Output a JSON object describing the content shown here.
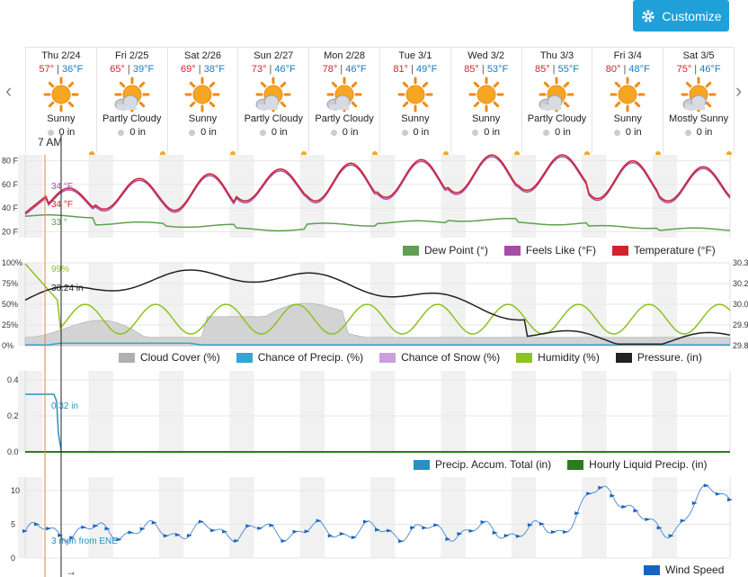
{
  "toolbar": {
    "customize_label": "Customize",
    "prev": "‹",
    "next": "›"
  },
  "days": [
    {
      "date": "Thu 2/24",
      "hi": "57°",
      "lo": "36°F",
      "icon": "sunny-icon",
      "cond": "Sunny",
      "precip": "0 in"
    },
    {
      "date": "Fri 2/25",
      "hi": "65°",
      "lo": "39°F",
      "icon": "partly-cloudy-icon",
      "cond": "Partly Cloudy",
      "precip": "0 in"
    },
    {
      "date": "Sat 2/26",
      "hi": "69°",
      "lo": "38°F",
      "icon": "sunny-icon",
      "cond": "Sunny",
      "precip": "0 in"
    },
    {
      "date": "Sun 2/27",
      "hi": "73°",
      "lo": "46°F",
      "icon": "partly-cloudy-icon",
      "cond": "Partly Cloudy",
      "precip": "0 in"
    },
    {
      "date": "Mon 2/28",
      "hi": "78°",
      "lo": "46°F",
      "icon": "partly-cloudy-icon",
      "cond": "Partly Cloudy",
      "precip": "0 in"
    },
    {
      "date": "Tue 3/1",
      "hi": "81°",
      "lo": "49°F",
      "icon": "sunny-icon",
      "cond": "Sunny",
      "precip": "0 in"
    },
    {
      "date": "Wed 3/2",
      "hi": "85°",
      "lo": "53°F",
      "icon": "sunny-icon",
      "cond": "Sunny",
      "precip": "0 in"
    },
    {
      "date": "Thu 3/3",
      "hi": "85°",
      "lo": "55°F",
      "icon": "partly-cloudy-icon",
      "cond": "Partly Cloudy",
      "precip": "0 in"
    },
    {
      "date": "Fri 3/4",
      "hi": "80°",
      "lo": "48°F",
      "icon": "sunny-icon",
      "cond": "Sunny",
      "precip": "0 in"
    },
    {
      "date": "Sat 3/5",
      "hi": "75°",
      "lo": "46°F",
      "icon": "mostly-sunny-icon",
      "cond": "Mostly Sunny",
      "precip": "0 in"
    }
  ],
  "cursor": {
    "time": "7 AM",
    "arrow": "→"
  },
  "colors": {
    "temperature": "#d2232a",
    "feels_like": "#a64ca6",
    "dew_point": "#5da050",
    "cloud": "#b0b0b0",
    "chance_precip": "#2fa8d8",
    "chance_snow": "#c9a0dc",
    "humidity": "#8dc21f",
    "pressure": "#222222",
    "accum": "#2a8fc1",
    "liquid": "#2d7a1f",
    "wind": "#1565c0"
  },
  "panels": {
    "temp": {
      "yticks": [
        "80 F",
        "60 F",
        "40 F",
        "20 F"
      ],
      "readouts": {
        "feels": "34 °F",
        "temp": "34 °F",
        "dew": "33 °"
      },
      "legend": [
        "Dew Point (°)",
        "Feels Like (°F)",
        "Temperature (°F)"
      ]
    },
    "humidity": {
      "yticks": [
        "100%",
        "75%",
        "50%",
        "25%",
        "0%"
      ],
      "yticks_right": [
        "30.3",
        "30.2",
        "30.0",
        "29.9",
        "29.8"
      ],
      "readouts": {
        "humidity": "99%",
        "pressure": "30.24 in"
      },
      "legend": [
        "Cloud Cover (%)",
        "Chance of Precip. (%)",
        "Chance of Snow (%)",
        "Humidity (%)",
        "Pressure. (in)"
      ]
    },
    "precip": {
      "yticks": [
        "0.4",
        "0.2",
        "0.0"
      ],
      "readouts": {
        "accum": "0.32 in"
      },
      "legend": [
        "Precip. Accum. Total (in)",
        "Hourly Liquid Precip. (in)"
      ]
    },
    "wind": {
      "yticks": [
        "10",
        "5",
        "0"
      ],
      "readouts": {
        "wind": "3 mph from ENE"
      },
      "legend": [
        "Wind Speed"
      ]
    }
  },
  "chart_data": [
    {
      "type": "line",
      "x": [
        "Thu 2/24",
        "Fri 2/25",
        "Sat 2/26",
        "Sun 2/27",
        "Mon 2/28",
        "Tue 3/1",
        "Wed 3/2",
        "Thu 3/3",
        "Fri 3/4",
        "Sat 3/5"
      ],
      "series": [
        {
          "name": "Temperature (°F)",
          "high": [
            57,
            65,
            69,
            73,
            78,
            81,
            85,
            85,
            80,
            75
          ],
          "low": [
            36,
            39,
            38,
            46,
            46,
            49,
            53,
            55,
            48,
            46
          ]
        },
        {
          "name": "Dew Point (°)",
          "values": [
            33,
            27,
            25,
            22,
            26,
            28,
            30,
            27,
            24,
            22
          ]
        }
      ],
      "ylim": [
        15,
        85
      ]
    },
    {
      "type": "line",
      "x": [
        "Thu 2/24",
        "Fri 2/25",
        "Sat 2/26",
        "Sun 2/27",
        "Mon 2/28",
        "Tue 3/1",
        "Wed 3/2",
        "Thu 3/3",
        "Fri 3/4",
        "Sat 3/5"
      ],
      "series": [
        {
          "name": "Humidity (%)",
          "values": [
            99,
            35,
            45,
            40,
            45,
            40,
            30,
            25,
            22,
            20
          ]
        },
        {
          "name": "Pressure. (in)",
          "values": [
            30.24,
            30.18,
            30.2,
            30.3,
            30.05,
            30.02,
            29.95,
            29.9,
            29.88,
            29.9
          ]
        }
      ],
      "ylim": [
        0,
        100
      ]
    },
    {
      "type": "line",
      "series": [
        {
          "name": "Precip. Accum. Total (in)",
          "values": [
            0.32,
            0.32,
            0.0,
            0,
            0,
            0,
            0,
            0,
            0,
            0
          ]
        }
      ],
      "ylim": [
        0,
        0.45
      ]
    },
    {
      "type": "line",
      "series": [
        {
          "name": "Wind Speed",
          "values": [
            3,
            4,
            5,
            4,
            5,
            4,
            4,
            5,
            8,
            10
          ]
        }
      ],
      "ylim": [
        0,
        12
      ]
    }
  ]
}
